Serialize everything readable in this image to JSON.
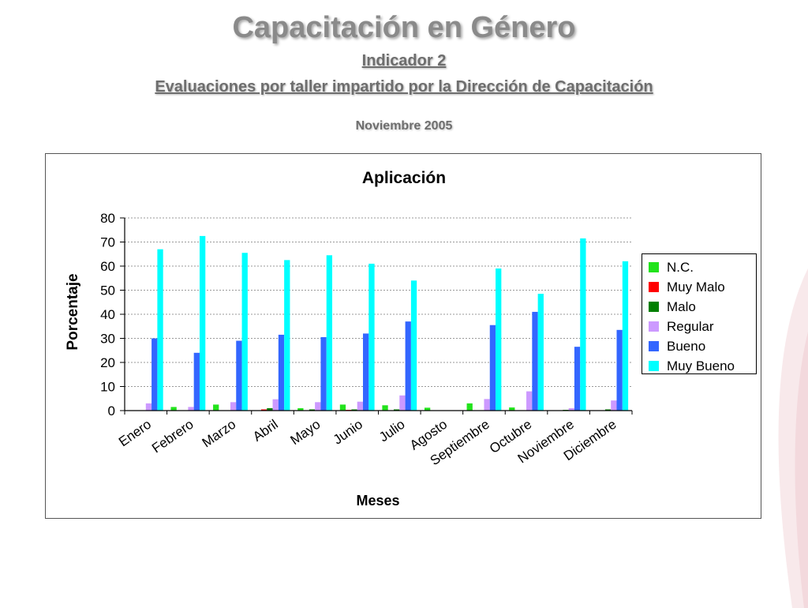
{
  "header": {
    "title": "Capacitación en Género",
    "subtitle1": "Indicador 2",
    "subtitle2": "Evaluaciones por taller impartido por la Dirección de Capacitación",
    "date": "Noviembre 2005"
  },
  "chart_data": {
    "type": "bar",
    "title": "Aplicación",
    "xlabel": "Meses",
    "ylabel": "Porcentaje",
    "ylim": [
      0,
      80
    ],
    "yticks": [
      0,
      10,
      20,
      30,
      40,
      50,
      60,
      70,
      80
    ],
    "grid": true,
    "legend_position": "right",
    "categories": [
      "Enero",
      "Febrero",
      "Marzo",
      "Abril",
      "Mayo",
      "Junio",
      "Julio",
      "Agosto",
      "Septiembre",
      "Octubre",
      "Noviembre",
      "Diciembre"
    ],
    "series": [
      {
        "name": "N.C.",
        "color": "#22e31c",
        "values": [
          0,
          1.5,
          2.5,
          0,
          1,
          2.5,
          2.2,
          1.2,
          3,
          1.3,
          0,
          0
        ]
      },
      {
        "name": "Muy Malo",
        "color": "#ff0000",
        "values": [
          0,
          0,
          0,
          0.5,
          0,
          0.3,
          0,
          0,
          0,
          0,
          0,
          0
        ]
      },
      {
        "name": "Malo",
        "color": "#007f00",
        "values": [
          0,
          0,
          0,
          1,
          0.5,
          0.5,
          0.5,
          0,
          0,
          0,
          0.3,
          0.5
        ]
      },
      {
        "name": "Regular",
        "color": "#cc99ff",
        "values": [
          3,
          1.5,
          3.5,
          4.7,
          3.5,
          3.7,
          6.3,
          0,
          4.8,
          8,
          1,
          4.2
        ]
      },
      {
        "name": "Bueno",
        "color": "#3366ff",
        "values": [
          30,
          24,
          29,
          31.5,
          30.5,
          32,
          37,
          0,
          35.5,
          41,
          26.5,
          33.5
        ]
      },
      {
        "name": "Muy Bueno",
        "color": "#00ffff",
        "values": [
          67,
          72.5,
          65.5,
          62.5,
          64.5,
          61,
          54,
          0,
          59,
          48.5,
          71.5,
          62
        ]
      }
    ]
  }
}
